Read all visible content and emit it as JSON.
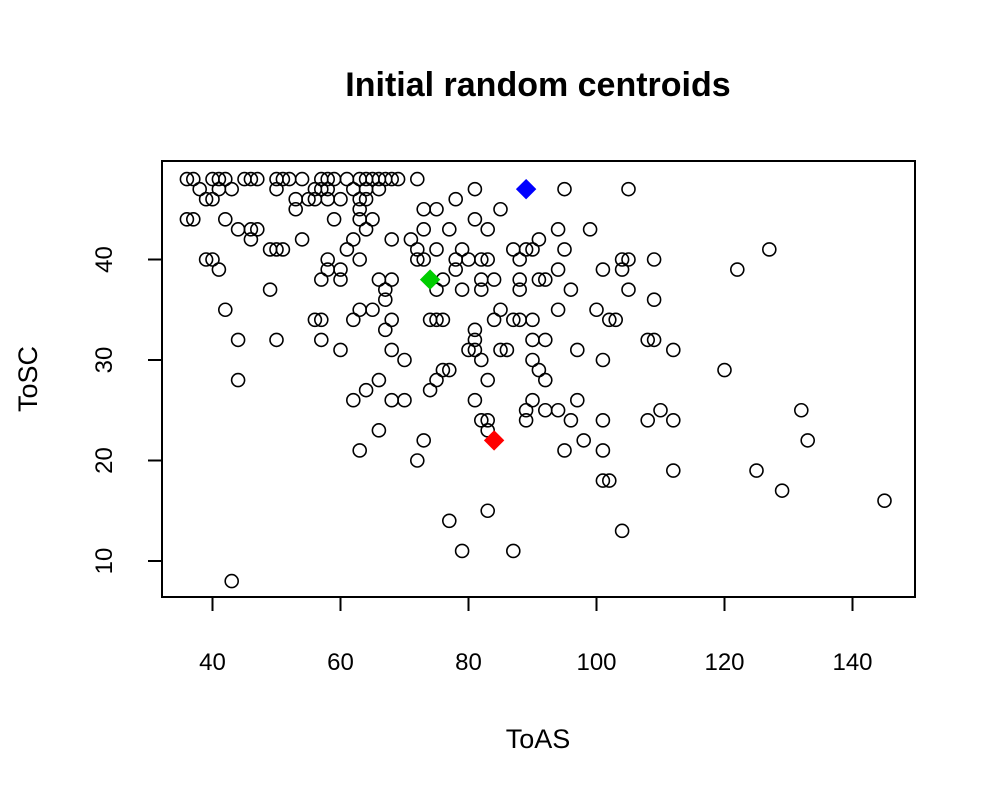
{
  "chart_data": {
    "type": "scatter",
    "title": "Initial random centroids",
    "xlabel": "ToAS",
    "ylabel": "ToSC",
    "xlim": [
      32,
      149
    ],
    "ylim": [
      6,
      50
    ],
    "xticks": [
      40,
      60,
      80,
      100,
      120,
      140
    ],
    "yticks": [
      10,
      20,
      30,
      40
    ],
    "grid": false,
    "legend": "none",
    "series": [
      {
        "marker": "open-circle",
        "color": "#000000",
        "points": [
          [
            36,
            48
          ],
          [
            37,
            48
          ],
          [
            40,
            48
          ],
          [
            41,
            48
          ],
          [
            42,
            48
          ],
          [
            45,
            48
          ],
          [
            46,
            48
          ],
          [
            47,
            48
          ],
          [
            50,
            48
          ],
          [
            51,
            48
          ],
          [
            52,
            48
          ],
          [
            54,
            48
          ],
          [
            57,
            48
          ],
          [
            58,
            48
          ],
          [
            59,
            48
          ],
          [
            61,
            48
          ],
          [
            63,
            48
          ],
          [
            64,
            48
          ],
          [
            65,
            48
          ],
          [
            66,
            48
          ],
          [
            67,
            48
          ],
          [
            68,
            48
          ],
          [
            69,
            48
          ],
          [
            72,
            48
          ],
          [
            38,
            47
          ],
          [
            41,
            47
          ],
          [
            43,
            47
          ],
          [
            50,
            47
          ],
          [
            56,
            47
          ],
          [
            57,
            47
          ],
          [
            58,
            47
          ],
          [
            62,
            47
          ],
          [
            64,
            47
          ],
          [
            66,
            47
          ],
          [
            81,
            47
          ],
          [
            95,
            47
          ],
          [
            105,
            47
          ],
          [
            39,
            46
          ],
          [
            40,
            46
          ],
          [
            53,
            46
          ],
          [
            55,
            46
          ],
          [
            56,
            46
          ],
          [
            58,
            46
          ],
          [
            60,
            46
          ],
          [
            63,
            46
          ],
          [
            64,
            46
          ],
          [
            78,
            46
          ],
          [
            53,
            45
          ],
          [
            63,
            45
          ],
          [
            73,
            45
          ],
          [
            75,
            45
          ],
          [
            85,
            45
          ],
          [
            36,
            44
          ],
          [
            37,
            44
          ],
          [
            42,
            44
          ],
          [
            59,
            44
          ],
          [
            63,
            44
          ],
          [
            65,
            44
          ],
          [
            81,
            44
          ],
          [
            44,
            43
          ],
          [
            46,
            43
          ],
          [
            47,
            43
          ],
          [
            64,
            43
          ],
          [
            73,
            43
          ],
          [
            77,
            43
          ],
          [
            83,
            43
          ],
          [
            94,
            43
          ],
          [
            99,
            43
          ],
          [
            46,
            42
          ],
          [
            54,
            42
          ],
          [
            62,
            42
          ],
          [
            68,
            42
          ],
          [
            71,
            42
          ],
          [
            91,
            42
          ],
          [
            49,
            41
          ],
          [
            50,
            41
          ],
          [
            51,
            41
          ],
          [
            61,
            41
          ],
          [
            72,
            41
          ],
          [
            75,
            41
          ],
          [
            79,
            41
          ],
          [
            87,
            41
          ],
          [
            89,
            41
          ],
          [
            90,
            41
          ],
          [
            95,
            41
          ],
          [
            127,
            41
          ],
          [
            39,
            40
          ],
          [
            40,
            40
          ],
          [
            58,
            40
          ],
          [
            63,
            40
          ],
          [
            72,
            40
          ],
          [
            73,
            40
          ],
          [
            78,
            40
          ],
          [
            80,
            40
          ],
          [
            82,
            40
          ],
          [
            83,
            40
          ],
          [
            88,
            40
          ],
          [
            104,
            40
          ],
          [
            105,
            40
          ],
          [
            109,
            40
          ],
          [
            41,
            39
          ],
          [
            58,
            39
          ],
          [
            60,
            39
          ],
          [
            78,
            39
          ],
          [
            94,
            39
          ],
          [
            101,
            39
          ],
          [
            104,
            39
          ],
          [
            122,
            39
          ],
          [
            57,
            38
          ],
          [
            60,
            38
          ],
          [
            66,
            38
          ],
          [
            68,
            38
          ],
          [
            76,
            38
          ],
          [
            82,
            38
          ],
          [
            84,
            38
          ],
          [
            88,
            38
          ],
          [
            91,
            38
          ],
          [
            92,
            38
          ],
          [
            49,
            37
          ],
          [
            67,
            37
          ],
          [
            75,
            37
          ],
          [
            79,
            37
          ],
          [
            82,
            37
          ],
          [
            88,
            37
          ],
          [
            96,
            37
          ],
          [
            105,
            37
          ],
          [
            67,
            36
          ],
          [
            109,
            36
          ],
          [
            42,
            35
          ],
          [
            63,
            35
          ],
          [
            65,
            35
          ],
          [
            85,
            35
          ],
          [
            94,
            35
          ],
          [
            100,
            35
          ],
          [
            56,
            34
          ],
          [
            57,
            34
          ],
          [
            62,
            34
          ],
          [
            68,
            34
          ],
          [
            74,
            34
          ],
          [
            75,
            34
          ],
          [
            76,
            34
          ],
          [
            84,
            34
          ],
          [
            87,
            34
          ],
          [
            88,
            34
          ],
          [
            90,
            34
          ],
          [
            102,
            34
          ],
          [
            103,
            34
          ],
          [
            67,
            33
          ],
          [
            81,
            33
          ],
          [
            44,
            32
          ],
          [
            50,
            32
          ],
          [
            57,
            32
          ],
          [
            81,
            32
          ],
          [
            90,
            32
          ],
          [
            92,
            32
          ],
          [
            108,
            32
          ],
          [
            109,
            32
          ],
          [
            60,
            31
          ],
          [
            68,
            31
          ],
          [
            80,
            31
          ],
          [
            81,
            31
          ],
          [
            85,
            31
          ],
          [
            86,
            31
          ],
          [
            97,
            31
          ],
          [
            112,
            31
          ],
          [
            70,
            30
          ],
          [
            82,
            30
          ],
          [
            90,
            30
          ],
          [
            101,
            30
          ],
          [
            76,
            29
          ],
          [
            77,
            29
          ],
          [
            91,
            29
          ],
          [
            120,
            29
          ],
          [
            44,
            28
          ],
          [
            66,
            28
          ],
          [
            75,
            28
          ],
          [
            83,
            28
          ],
          [
            92,
            28
          ],
          [
            64,
            27
          ],
          [
            74,
            27
          ],
          [
            62,
            26
          ],
          [
            68,
            26
          ],
          [
            70,
            26
          ],
          [
            81,
            26
          ],
          [
            90,
            26
          ],
          [
            97,
            26
          ],
          [
            89,
            25
          ],
          [
            92,
            25
          ],
          [
            94,
            25
          ],
          [
            110,
            25
          ],
          [
            132,
            25
          ],
          [
            82,
            24
          ],
          [
            83,
            24
          ],
          [
            89,
            24
          ],
          [
            96,
            24
          ],
          [
            101,
            24
          ],
          [
            108,
            24
          ],
          [
            112,
            24
          ],
          [
            66,
            23
          ],
          [
            83,
            23
          ],
          [
            73,
            22
          ],
          [
            98,
            22
          ],
          [
            133,
            22
          ],
          [
            63,
            21
          ],
          [
            95,
            21
          ],
          [
            101,
            21
          ],
          [
            72,
            20
          ],
          [
            112,
            19
          ],
          [
            125,
            19
          ],
          [
            101,
            18
          ],
          [
            102,
            18
          ],
          [
            129,
            17
          ],
          [
            145,
            16
          ],
          [
            83,
            15
          ],
          [
            77,
            14
          ],
          [
            104,
            13
          ],
          [
            79,
            11
          ],
          [
            87,
            11
          ],
          [
            43,
            8
          ]
        ]
      }
    ],
    "centroids": [
      {
        "x": 89,
        "y": 47,
        "color": "#0000ff",
        "marker": "filled-diamond"
      },
      {
        "x": 74,
        "y": 38,
        "color": "#00cd00",
        "marker": "filled-diamond"
      },
      {
        "x": 84,
        "y": 22,
        "color": "#ff0000",
        "marker": "filled-diamond"
      }
    ]
  }
}
